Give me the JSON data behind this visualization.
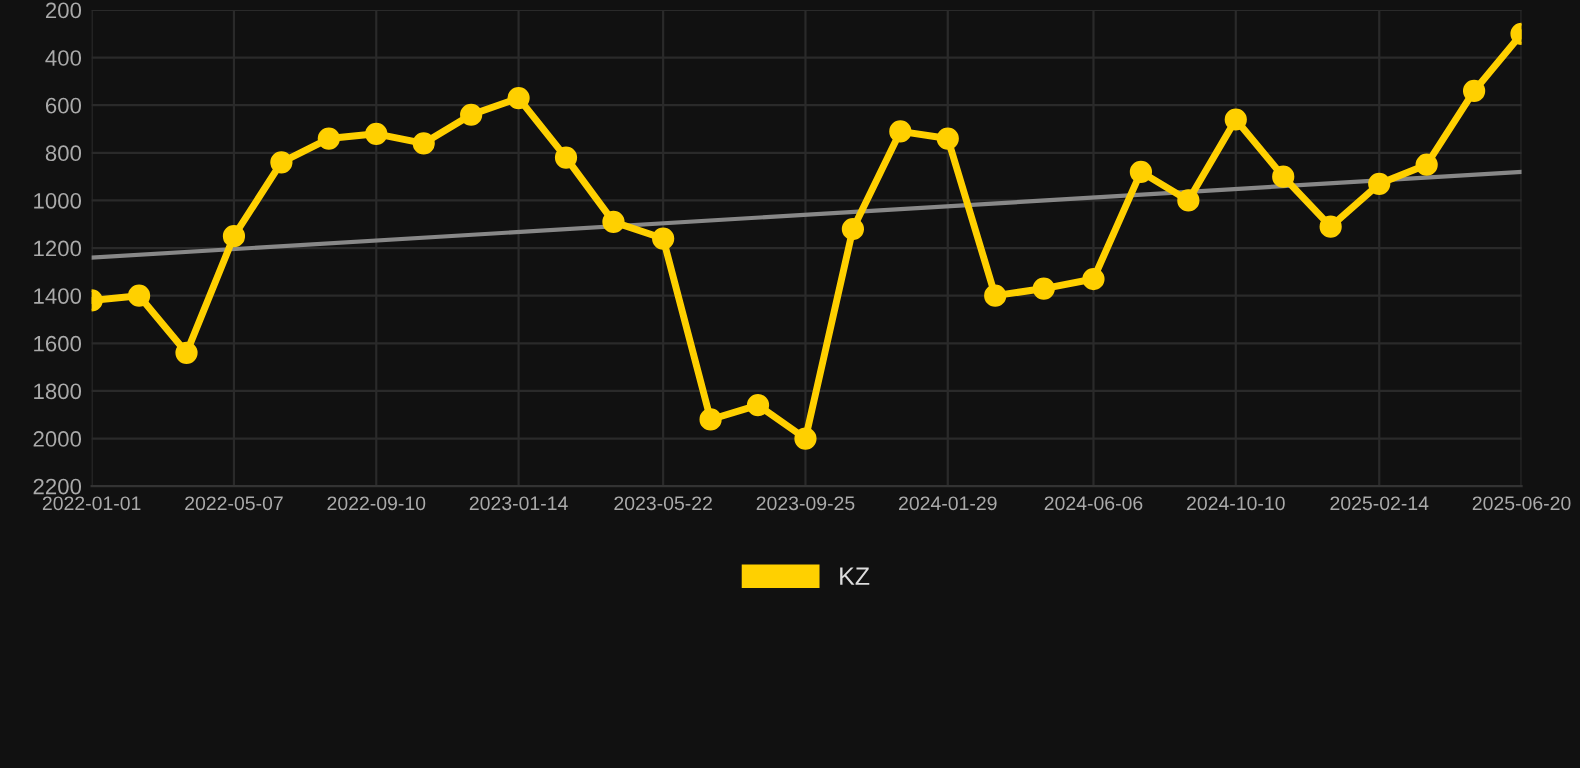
{
  "chart_data": {
    "type": "line",
    "ylim": [
      2200,
      200
    ],
    "yticks": [
      200,
      400,
      600,
      800,
      1000,
      1200,
      1400,
      1600,
      1800,
      2000,
      2200
    ],
    "xlim": [
      "2022-01-01",
      "2025-06-20"
    ],
    "xticks": [
      "2022-01-01",
      "2022-05-07",
      "2022-09-10",
      "2023-01-14",
      "2023-05-22",
      "2023-09-25",
      "2024-01-29",
      "2024-06-06",
      "2024-10-10",
      "2025-02-14",
      "2025-06-20"
    ],
    "grid": true,
    "legend": "bottom",
    "marker": "circle",
    "line_style": "solid",
    "series": [
      {
        "name": "KZ",
        "color": "#ffd000",
        "x": [
          "2022-01-01",
          "2022-02-12",
          "2022-03-26",
          "2022-05-07",
          "2022-06-18",
          "2022-07-30",
          "2022-09-10",
          "2022-10-22",
          "2022-12-03",
          "2023-01-14",
          "2023-02-25",
          "2023-04-08",
          "2023-05-22",
          "2023-07-03",
          "2023-08-14",
          "2023-09-25",
          "2023-11-06",
          "2023-12-18",
          "2024-01-29",
          "2024-03-11",
          "2024-04-23",
          "2024-06-06",
          "2024-07-18",
          "2024-08-29",
          "2024-10-10",
          "2024-11-21",
          "2025-01-02",
          "2025-02-14",
          "2025-03-28",
          "2025-05-09",
          "2025-06-20"
        ],
        "values": [
          1420,
          1400,
          1640,
          1150,
          840,
          740,
          720,
          760,
          640,
          570,
          820,
          1090,
          1160,
          1920,
          1860,
          2000,
          1120,
          710,
          740,
          1400,
          1370,
          1330,
          880,
          1000,
          660,
          900,
          1110,
          930,
          850,
          540,
          300
        ]
      },
      {
        "type": "line",
        "color": "#888888",
        "marker": "none",
        "x": [
          "2022-01-01",
          "2025-06-20"
        ],
        "values": [
          1240,
          880
        ]
      }
    ]
  }
}
